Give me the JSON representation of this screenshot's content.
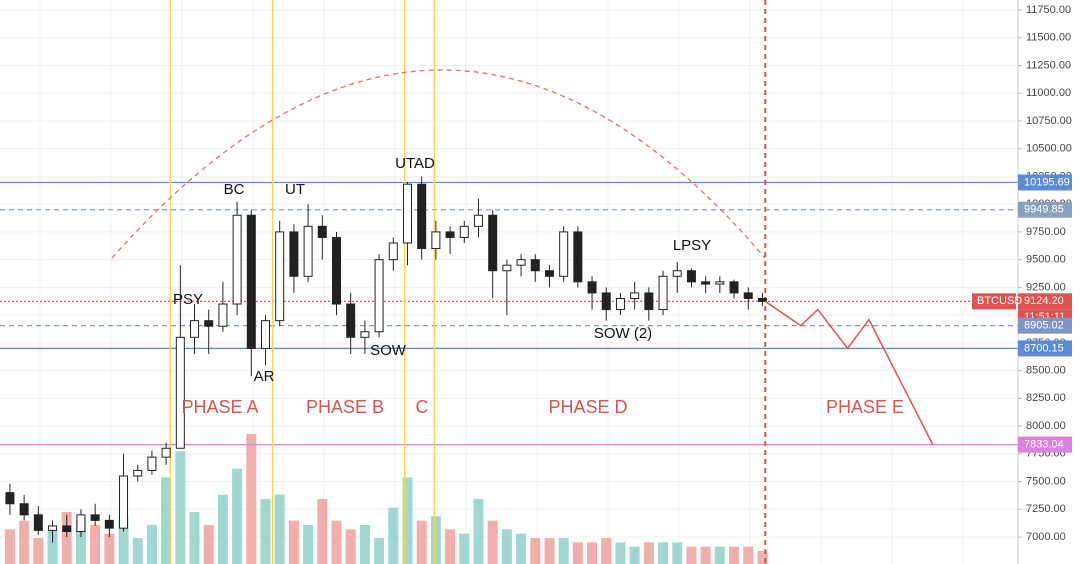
{
  "chart_data": {
    "type": "candlestick",
    "symbol": "BTCUSD",
    "countdown": "11:51:11",
    "xlim": [
      -0.7,
      71
    ],
    "ylim": [
      6757,
      11840
    ],
    "yticks": [
      {
        "value": 7000,
        "label": "7000.00"
      },
      {
        "value": 7250,
        "label": "7250.00"
      },
      {
        "value": 7500,
        "label": "7500.00"
      },
      {
        "value": 7750,
        "label": "7750.00"
      },
      {
        "value": 8000,
        "label": "8000.00"
      },
      {
        "value": 8250,
        "label": "8250.00"
      },
      {
        "value": 8500,
        "label": "8500.00"
      },
      {
        "value": 8750,
        "label": "8750.00"
      },
      {
        "value": 9000,
        "label": "9000.00"
      },
      {
        "value": 9250,
        "label": "9250.00"
      },
      {
        "value": 9500,
        "label": "9500.00"
      },
      {
        "value": 9750,
        "label": "9750.00"
      },
      {
        "value": 10000,
        "label": "10000.00"
      },
      {
        "value": 10250,
        "label": "10250.00"
      },
      {
        "value": 10500,
        "label": "10500.00"
      },
      {
        "value": 10750,
        "label": "10750.00"
      },
      {
        "value": 11000,
        "label": "11000.00"
      },
      {
        "value": 11250,
        "label": "11250.00"
      },
      {
        "value": 11500,
        "label": "11500.00"
      },
      {
        "value": 11750,
        "label": "11750.00"
      }
    ],
    "grid": true,
    "up_color": "#ffffff",
    "down_color": "#222222",
    "volume_up_color": "#8fd0c8",
    "volume_down_color": "#f0a09c",
    "ohlc": [
      [
        7400,
        7480,
        7200,
        7300
      ],
      [
        7300,
        7380,
        7150,
        7200
      ],
      [
        7200,
        7280,
        7020,
        7060
      ],
      [
        7060,
        7150,
        6950,
        7100
      ],
      [
        7100,
        7200,
        7000,
        7050
      ],
      [
        7050,
        7250,
        7000,
        7200
      ],
      [
        7200,
        7300,
        7100,
        7150
      ],
      [
        7150,
        7200,
        7000,
        7080
      ],
      [
        7080,
        7750,
        7050,
        7550
      ],
      [
        7550,
        7650,
        7500,
        7600
      ],
      [
        7600,
        7780,
        7560,
        7720
      ],
      [
        7720,
        7850,
        7650,
        7800
      ],
      [
        7800,
        9450,
        7800,
        8800
      ],
      [
        8800,
        9100,
        8650,
        8950
      ],
      [
        8950,
        9050,
        8650,
        8900
      ],
      [
        8900,
        9300,
        8850,
        9100
      ],
      [
        9100,
        10020,
        9000,
        9900
      ],
      [
        9900,
        9950,
        8450,
        8700
      ],
      [
        8700,
        9000,
        8550,
        8950
      ],
      [
        8950,
        9850,
        8900,
        9750
      ],
      [
        9750,
        9820,
        9200,
        9350
      ],
      [
        9350,
        10000,
        9300,
        9800
      ],
      [
        9800,
        9900,
        9500,
        9700
      ],
      [
        9700,
        9750,
        9000,
        9100
      ],
      [
        9100,
        9200,
        8650,
        8800
      ],
      [
        8800,
        8950,
        8650,
        8850
      ],
      [
        8850,
        9550,
        8800,
        9500
      ],
      [
        9500,
        9700,
        9400,
        9650
      ],
      [
        9650,
        10200,
        9450,
        10180
      ],
      [
        10180,
        10250,
        9500,
        9600
      ],
      [
        9600,
        9850,
        9500,
        9750
      ],
      [
        9750,
        9800,
        9550,
        9700
      ],
      [
        9700,
        9850,
        9650,
        9800
      ],
      [
        9800,
        10050,
        9700,
        9900
      ],
      [
        9900,
        9950,
        9150,
        9400
      ],
      [
        9400,
        9500,
        9000,
        9450
      ],
      [
        9450,
        9550,
        9350,
        9500
      ],
      [
        9500,
        9550,
        9300,
        9400
      ],
      [
        9400,
        9450,
        9250,
        9350
      ],
      [
        9350,
        9800,
        9300,
        9750
      ],
      [
        9750,
        9800,
        9250,
        9300
      ],
      [
        9300,
        9350,
        9050,
        9200
      ],
      [
        9200,
        9250,
        8950,
        9050
      ],
      [
        9050,
        9200,
        9000,
        9150
      ],
      [
        9150,
        9300,
        9050,
        9200
      ],
      [
        9200,
        9250,
        8950,
        9050
      ],
      [
        9050,
        9400,
        9000,
        9350
      ],
      [
        9350,
        9480,
        9200,
        9400
      ],
      [
        9400,
        9420,
        9250,
        9300
      ],
      [
        9300,
        9350,
        9200,
        9280
      ],
      [
        9280,
        9350,
        9200,
        9300
      ],
      [
        9300,
        9320,
        9150,
        9200
      ],
      [
        9200,
        9250,
        9050,
        9150
      ],
      [
        9150,
        9200,
        9080,
        9124.2
      ]
    ],
    "volume": [
      40,
      50,
      30,
      40,
      60,
      50,
      45,
      35,
      55,
      30,
      45,
      100,
      130,
      60,
      45,
      80,
      110,
      150,
      75,
      80,
      50,
      45,
      75,
      50,
      40,
      45,
      30,
      65,
      100,
      50,
      55,
      40,
      35,
      75,
      50,
      40,
      35,
      30,
      30,
      30,
      25,
      25,
      30,
      25,
      20,
      25,
      25,
      25,
      20,
      20,
      20,
      20,
      20,
      15
    ],
    "levels": [
      {
        "price": 10195.69,
        "label": "10195.69",
        "color": "#5b8ad6",
        "style": "solid"
      },
      {
        "price": 9949.85,
        "label": "9949.85",
        "color": "#8aa0c0",
        "style": "dashed"
      },
      {
        "price": 9124.2,
        "label": "9124.20",
        "color": "#e0524f",
        "style": "dotted"
      },
      {
        "price": 8905.02,
        "label": "8905.02",
        "color": "#7d95c8",
        "style": "dashed"
      },
      {
        "price": 8700.15,
        "label": "8700.15",
        "color": "#5b8ad6",
        "style": "solid"
      },
      {
        "price": 7833.04,
        "label": "7833.04",
        "color": "#e07fe0",
        "style": "solid"
      }
    ],
    "markers": [
      {
        "x": 11.3,
        "color": "#f5d54a",
        "style": "solid"
      },
      {
        "x": 18.5,
        "color": "#f5d54a",
        "style": "solid"
      },
      {
        "x": 27.8,
        "color": "#f5d54a",
        "style": "solid"
      },
      {
        "x": 29.9,
        "color": "#f5d54a",
        "style": "solid"
      },
      {
        "x": 53.2,
        "color": "#e0524f",
        "style": "dashed"
      }
    ],
    "projection": {
      "color": "#e0524f",
      "x": [
        53.2,
        55.7,
        56.9,
        59.0,
        60.5,
        65.0
      ],
      "y": [
        9124.2,
        8905,
        9050,
        8700,
        8960,
        7833
      ]
    },
    "annotations": [
      "PSY",
      "BC",
      "AR",
      "UT",
      "SOW",
      "UTAD",
      "SOW (2)",
      "LPSY"
    ],
    "phases": [
      "PHASE A",
      "PHASE B",
      "C",
      "PHASE D",
      "PHASE E"
    ]
  }
}
